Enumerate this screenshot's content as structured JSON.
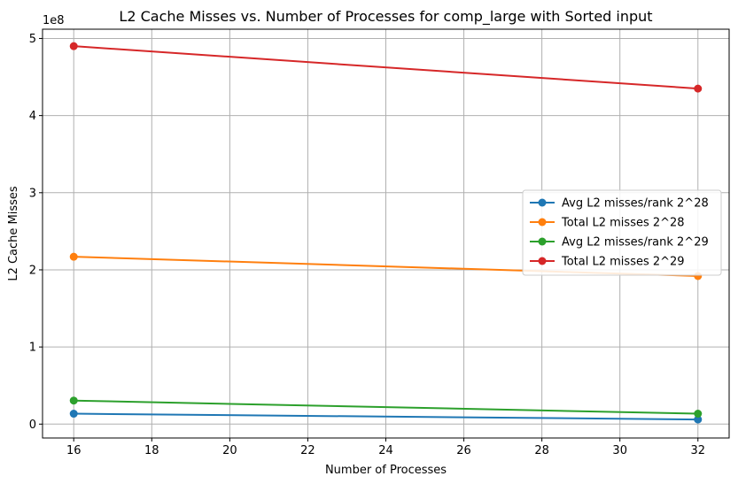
{
  "chart_data": {
    "type": "line",
    "title": "L2 Cache Misses vs. Number of Processes for comp_large with Sorted input",
    "xlabel": "Number of Processes",
    "ylabel": "L2 Cache Misses",
    "y_offset_label": "1e8",
    "y_scale_factor": 100000000,
    "x": [
      16,
      32
    ],
    "xlim": [
      15.2,
      32.8
    ],
    "ylim": [
      -18000000,
      512000000
    ],
    "x_ticks": [
      16,
      18,
      20,
      22,
      24,
      26,
      28,
      30,
      32
    ],
    "y_ticks": [
      0,
      100000000,
      200000000,
      300000000,
      400000000,
      500000000
    ],
    "y_tick_labels": [
      "0",
      "1",
      "2",
      "3",
      "4",
      "5"
    ],
    "grid": true,
    "legend_position": "center-right",
    "series": [
      {
        "name": "Avg L2 misses/rank 2^28",
        "color": "#1f77b4",
        "values": [
          13500000,
          6000000
        ]
      },
      {
        "name": "Total L2 misses 2^28",
        "color": "#ff7f0e",
        "values": [
          217000000,
          192000000
        ]
      },
      {
        "name": "Avg L2 misses/rank 2^29",
        "color": "#2ca02c",
        "values": [
          30500000,
          13500000
        ]
      },
      {
        "name": "Total L2 misses 2^29",
        "color": "#d62728",
        "values": [
          490000000,
          435000000
        ]
      }
    ]
  }
}
